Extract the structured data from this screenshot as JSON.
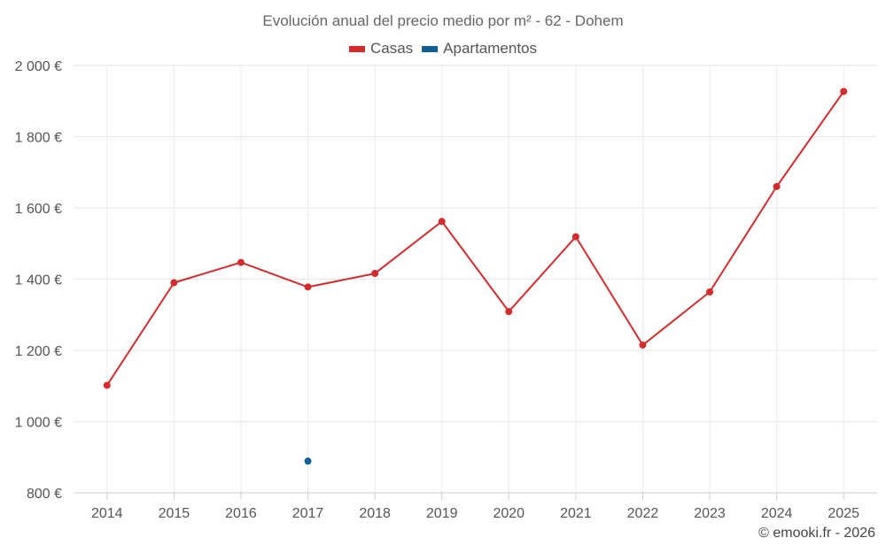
{
  "chart_data": {
    "type": "line",
    "title": "Evolución anual del precio medio por m² - 62 - Dohem",
    "categories": [
      "2014",
      "2015",
      "2016",
      "2017",
      "2018",
      "2019",
      "2020",
      "2021",
      "2022",
      "2023",
      "2024",
      "2025"
    ],
    "series": [
      {
        "name": "Casas",
        "color": "#d22c2c",
        "values": [
          1102,
          1390,
          1447,
          1378,
          1416,
          1562,
          1309,
          1519,
          1215,
          1364,
          1660,
          1927
        ]
      },
      {
        "name": "Apartamentos",
        "color": "#0f5f96",
        "values": [
          null,
          null,
          null,
          889,
          null,
          null,
          null,
          null,
          null,
          null,
          null,
          null
        ]
      }
    ],
    "ylim": [
      800,
      2000
    ],
    "yticks": [
      800,
      1000,
      1200,
      1400,
      1600,
      1800,
      2000
    ],
    "ytick_labels": [
      "800 €",
      "1 000 €",
      "1 200 €",
      "1 400 €",
      "1 600 €",
      "1 800 €",
      "2 000 €"
    ],
    "grid": true,
    "legend_position": "top-center"
  },
  "credit": "© emooki.fr - 2026"
}
